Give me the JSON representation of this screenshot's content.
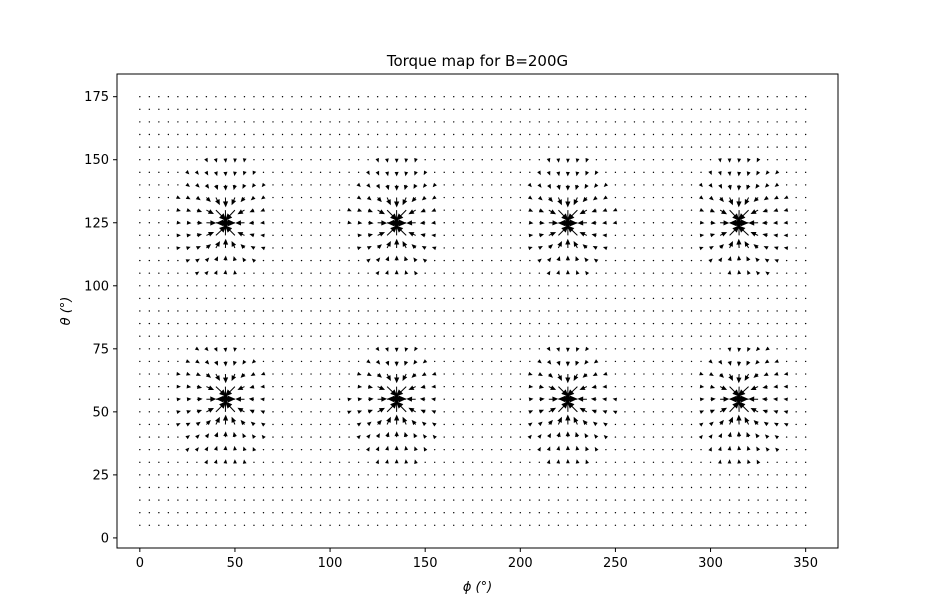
{
  "chart_data": {
    "type": "quiver",
    "title": "Torque map for B=200G",
    "xlabel": "ϕ (°)",
    "ylabel": "θ (°)",
    "xlim": [
      -12,
      367
    ],
    "ylim": [
      -4,
      184
    ],
    "xticks": [
      0,
      50,
      100,
      150,
      200,
      250,
      300,
      350
    ],
    "yticks": [
      0,
      25,
      50,
      75,
      100,
      125,
      150,
      175
    ],
    "grid": false,
    "legend": "none",
    "arrow_color": "#000000",
    "grid_sampling": {
      "phi_start": 0,
      "phi_end": 350,
      "phi_step": 5,
      "theta_start": 5,
      "theta_end": 175,
      "theta_step": 5
    },
    "field": {
      "description": "torque vectors with singular points near (45,55),(45,125),(135,55),(135,125),(225,55),(225,125),(315,55),(315,125)",
      "singular_points": [
        [
          45,
          55
        ],
        [
          45,
          125
        ],
        [
          135,
          55
        ],
        [
          135,
          125
        ],
        [
          225,
          55
        ],
        [
          225,
          125
        ],
        [
          315,
          55
        ],
        [
          315,
          125
        ]
      ]
    }
  }
}
